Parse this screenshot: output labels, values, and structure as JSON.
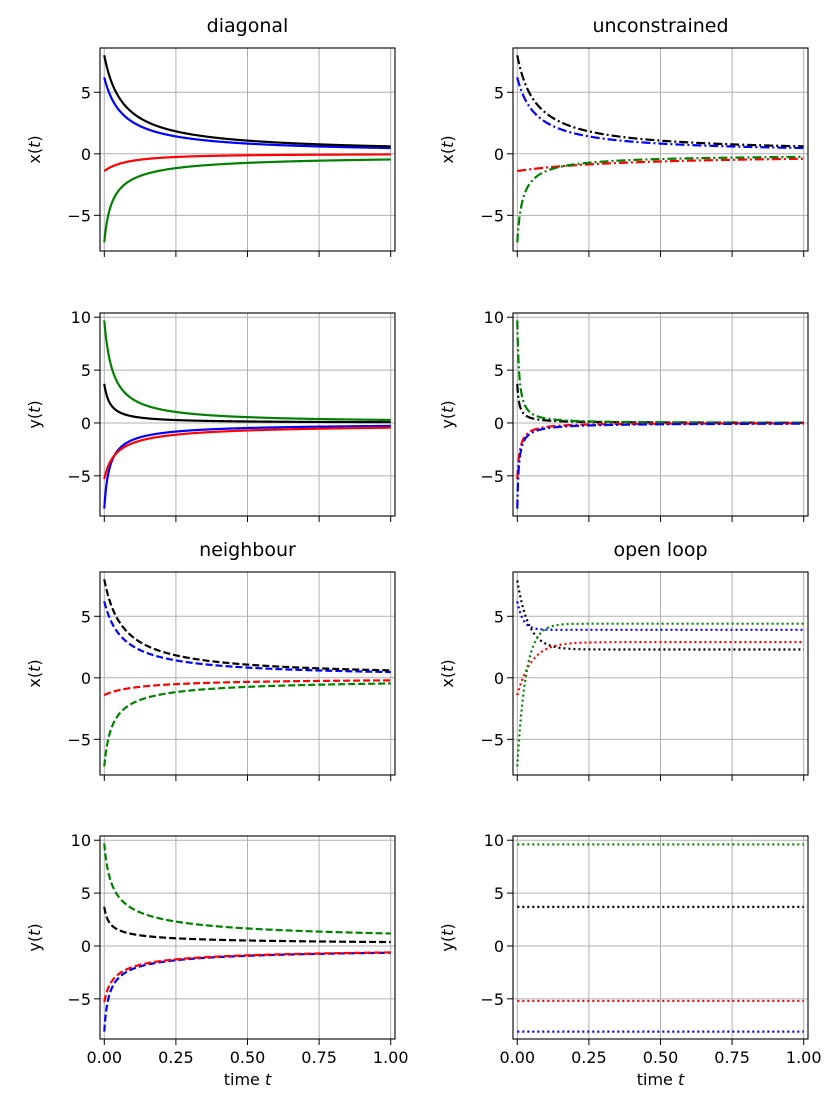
{
  "chart_data": {
    "type": "line",
    "layout": "4x2 grid",
    "x_axis_label": "time",
    "x_axis_var": "t",
    "xlim": [
      0.0,
      1.0
    ],
    "xticks": [
      0.0,
      0.25,
      0.5,
      0.75,
      1.0
    ],
    "xtick_labels": [
      "0.00",
      "0.25",
      "0.50",
      "0.75",
      "1.00"
    ],
    "colors": {
      "blue": "#0000ff",
      "black": "#000000",
      "red": "#ff0000",
      "green": "#008000"
    },
    "panels": [
      {
        "title": "diagonal",
        "ylabel_prefix": "x(",
        "ylabel_var": "t",
        "ylabel_suffix": ")",
        "ylim": [
          -7.9,
          8.6
        ],
        "yticks": [
          -5,
          0,
          5
        ],
        "ytick_labels": [
          "−5",
          "0",
          "5"
        ],
        "show_xticklabels": false,
        "series": [
          {
            "color": "blue",
            "style": "solid",
            "model": "decay",
            "y0": 6.2,
            "yinf": 0.0,
            "tau": 0.06,
            "p": 0.9
          },
          {
            "color": "black",
            "style": "solid",
            "model": "decay",
            "y0": 8.0,
            "yinf": 0.0,
            "tau": 0.06,
            "p": 0.9
          },
          {
            "color": "red",
            "style": "solid",
            "model": "decay",
            "y0": -1.4,
            "yinf": 0.0,
            "tau": 0.12,
            "p": 1.5
          },
          {
            "color": "green",
            "style": "solid",
            "model": "decay",
            "y0": -7.2,
            "yinf": 0.0,
            "tau": 0.02,
            "p": 0.7
          }
        ]
      },
      {
        "title": "unconstrained",
        "ylabel_prefix": "x(",
        "ylabel_var": "t",
        "ylabel_suffix": ")",
        "ylim": [
          -7.9,
          8.6
        ],
        "yticks": [
          -5,
          0,
          5
        ],
        "ytick_labels": [
          "−5",
          "0",
          "5"
        ],
        "show_xticklabels": false,
        "series": [
          {
            "color": "blue",
            "style": "dashdot",
            "model": "decay",
            "y0": 6.2,
            "yinf": 0.0,
            "tau": 0.06,
            "p": 0.9
          },
          {
            "color": "black",
            "style": "dashdot",
            "model": "decay",
            "y0": 8.0,
            "yinf": 0.0,
            "tau": 0.06,
            "p": 0.9
          },
          {
            "color": "red",
            "style": "dashdot",
            "model": "decay",
            "y0": -1.4,
            "yinf": 0.0,
            "tau": 0.4,
            "p": 1.0
          },
          {
            "color": "green",
            "style": "dashdot",
            "model": "decay",
            "y0": -7.2,
            "yinf": 0.0,
            "tau": 0.015,
            "p": 0.8
          }
        ]
      },
      {
        "title": "",
        "ylabel_prefix": "y(",
        "ylabel_var": "t",
        "ylabel_suffix": ")",
        "ylim": [
          -8.8,
          10.4
        ],
        "yticks": [
          -5,
          0,
          5,
          10
        ],
        "ytick_labels": [
          "−5",
          "0",
          "5",
          "10"
        ],
        "show_xticklabels": false,
        "series": [
          {
            "color": "black",
            "style": "solid",
            "model": "decay",
            "y0": 3.7,
            "yinf": 0.0,
            "tau": 0.02,
            "p": 1.0
          },
          {
            "color": "green",
            "style": "solid",
            "model": "decay",
            "y0": 9.7,
            "yinf": 0.0,
            "tau": 0.03,
            "p": 1.0
          },
          {
            "color": "blue",
            "style": "solid",
            "model": "decay",
            "y0": -8.1,
            "yinf": 0.0,
            "tau": 0.015,
            "p": 0.8
          },
          {
            "color": "red",
            "style": "solid",
            "model": "decay",
            "y0": -5.3,
            "yinf": 0.0,
            "tau": 0.03,
            "p": 0.7
          }
        ]
      },
      {
        "title": "",
        "ylabel_prefix": "y(",
        "ylabel_var": "t",
        "ylabel_suffix": ")",
        "ylim": [
          -8.8,
          10.4
        ],
        "yticks": [
          -5,
          0,
          5,
          10
        ],
        "ytick_labels": [
          "−5",
          "0",
          "5",
          "10"
        ],
        "show_xticklabels": false,
        "series": [
          {
            "color": "black",
            "style": "dashdot",
            "model": "decay",
            "y0": 3.7,
            "yinf": 0.0,
            "tau": 0.007,
            "p": 1.0
          },
          {
            "color": "green",
            "style": "dashdot",
            "model": "decay",
            "y0": 9.7,
            "yinf": 0.0,
            "tau": 0.008,
            "p": 1.2
          },
          {
            "color": "red",
            "style": "dashdot",
            "model": "decay",
            "y0": -5.3,
            "yinf": 0.0,
            "tau": 0.01,
            "p": 1.1
          },
          {
            "color": "blue",
            "style": "dashdot",
            "model": "decay",
            "y0": -8.1,
            "yinf": 0.0,
            "tau": 0.005,
            "p": 0.9
          }
        ]
      },
      {
        "title": "neighbour",
        "ylabel_prefix": "x(",
        "ylabel_var": "t",
        "ylabel_suffix": ")",
        "ylim": [
          -7.9,
          8.6
        ],
        "yticks": [
          -5,
          0,
          5
        ],
        "ytick_labels": [
          "−5",
          "0",
          "5"
        ],
        "show_xticklabels": false,
        "series": [
          {
            "color": "blue",
            "style": "dashed",
            "model": "decay",
            "y0": 6.2,
            "yinf": 0.0,
            "tau": 0.06,
            "p": 0.9
          },
          {
            "color": "black",
            "style": "dashed",
            "model": "decay",
            "y0": 8.0,
            "yinf": 0.0,
            "tau": 0.06,
            "p": 0.9
          },
          {
            "color": "red",
            "style": "dashed",
            "model": "decay",
            "y0": -1.4,
            "yinf": 0.0,
            "tau": 0.1,
            "p": 0.8
          },
          {
            "color": "green",
            "style": "dashed",
            "model": "decay",
            "y0": -7.2,
            "yinf": 0.0,
            "tau": 0.02,
            "p": 0.7
          }
        ]
      },
      {
        "title": "open loop",
        "ylabel_prefix": "x(",
        "ylabel_var": "t",
        "ylabel_suffix": ")",
        "ylim": [
          -7.9,
          8.6
        ],
        "yticks": [
          -5,
          0,
          5
        ],
        "ytick_labels": [
          "−5",
          "0",
          "5"
        ],
        "show_xticklabels": false,
        "series": [
          {
            "color": "black",
            "style": "dotted",
            "model": "settle",
            "y0": 7.9,
            "yinf": 2.3,
            "tau": 0.04
          },
          {
            "color": "blue",
            "style": "dotted",
            "model": "settle",
            "y0": 6.2,
            "yinf": 3.9,
            "tau": 0.02
          },
          {
            "color": "red",
            "style": "dotted",
            "model": "settle",
            "y0": -1.4,
            "yinf": 2.9,
            "tau": 0.05
          },
          {
            "color": "green",
            "style": "dotted",
            "model": "settle",
            "y0": -7.2,
            "yinf": 4.4,
            "tau": 0.03
          }
        ]
      },
      {
        "title": "",
        "ylabel_prefix": "y(",
        "ylabel_var": "t",
        "ylabel_suffix": ")",
        "ylim": [
          -8.8,
          10.4
        ],
        "yticks": [
          -5,
          0,
          5,
          10
        ],
        "ytick_labels": [
          "−5",
          "0",
          "5",
          "10"
        ],
        "show_xticklabels": true,
        "series": [
          {
            "color": "green",
            "style": "dashed",
            "model": "decay",
            "y0": 9.7,
            "yinf": 0.0,
            "tau": 0.015,
            "p": 0.5
          },
          {
            "color": "black",
            "style": "dashed",
            "model": "decay",
            "y0": 3.7,
            "yinf": 0.0,
            "tau": 0.01,
            "p": 0.5
          },
          {
            "color": "blue",
            "style": "dashed",
            "model": "decay",
            "y0": -8.1,
            "yinf": 0.0,
            "tau": 0.01,
            "p": 0.55
          },
          {
            "color": "red",
            "style": "dashed",
            "model": "decay",
            "y0": -5.3,
            "yinf": 0.0,
            "tau": 0.02,
            "p": 0.55
          }
        ]
      },
      {
        "title": "",
        "ylabel_prefix": "y(",
        "ylabel_var": "t",
        "ylabel_suffix": ")",
        "ylim": [
          -8.8,
          10.4
        ],
        "yticks": [
          -5,
          0,
          5,
          10
        ],
        "ytick_labels": [
          "−5",
          "0",
          "5",
          "10"
        ],
        "show_xticklabels": true,
        "series": [
          {
            "color": "green",
            "style": "dotted",
            "model": "const",
            "value": 9.6
          },
          {
            "color": "black",
            "style": "dotted",
            "model": "const",
            "value": 3.7
          },
          {
            "color": "red",
            "style": "dotted",
            "model": "const",
            "value": -5.2
          },
          {
            "color": "blue",
            "style": "dotted",
            "model": "const",
            "value": -8.1
          }
        ]
      }
    ]
  }
}
